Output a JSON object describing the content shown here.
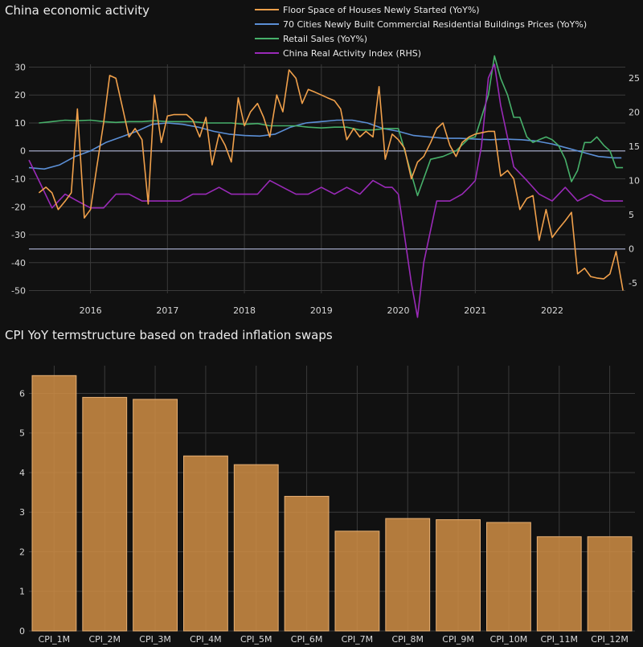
{
  "chart_data": [
    {
      "type": "line",
      "title": "China economic activity",
      "xlabel": "",
      "ylabel": "",
      "x_ticks": [
        "2016",
        "2017",
        "2018",
        "2019",
        "2020",
        "2021",
        "2022"
      ],
      "y_ticks": [
        -50,
        -40,
        -30,
        -20,
        -10,
        0,
        10,
        20,
        30
      ],
      "y2_ticks": [
        -5,
        0,
        5,
        10,
        15,
        20,
        25
      ],
      "ylim": [
        -51,
        31
      ],
      "y2lim": [
        -6.5,
        27
      ],
      "xlim": [
        2015.2,
        2022.95
      ],
      "grid": true,
      "legend_position": "top-right",
      "series": [
        {
          "name": "Floor Space of Houses Newly Started (YoY%)",
          "axis": "left",
          "color": "#f0a04b",
          "x": [
            2015.33,
            2015.42,
            2015.5,
            2015.58,
            2015.67,
            2015.75,
            2015.83,
            2015.92,
            2016.0,
            2016.08,
            2016.17,
            2016.25,
            2016.33,
            2016.42,
            2016.5,
            2016.58,
            2016.67,
            2016.75,
            2016.83,
            2016.92,
            2017.0,
            2017.08,
            2017.17,
            2017.25,
            2017.33,
            2017.42,
            2017.5,
            2017.58,
            2017.67,
            2017.75,
            2017.83,
            2017.92,
            2018.0,
            2018.08,
            2018.17,
            2018.25,
            2018.33,
            2018.42,
            2018.5,
            2018.58,
            2018.67,
            2018.75,
            2018.83,
            2018.92,
            2019.0,
            2019.08,
            2019.17,
            2019.25,
            2019.33,
            2019.42,
            2019.5,
            2019.58,
            2019.67,
            2019.75,
            2019.83,
            2019.92,
            2020.0,
            2020.08,
            2020.17,
            2020.25,
            2020.33,
            2020.42,
            2020.5,
            2020.58,
            2020.67,
            2020.75,
            2020.83,
            2020.92,
            2021.0,
            2021.08,
            2021.17,
            2021.25,
            2021.33,
            2021.42,
            2021.5,
            2021.58,
            2021.67,
            2021.75,
            2021.83,
            2021.92,
            2022.0,
            2022.08,
            2022.17,
            2022.25,
            2022.33,
            2022.42,
            2022.5,
            2022.58,
            2022.67,
            2022.75,
            2022.83,
            2022.92
          ],
          "values": [
            -15,
            -13,
            -15,
            -21,
            -18,
            -15,
            15,
            -24,
            -21,
            -6,
            10,
            27,
            26,
            15,
            5,
            8,
            4,
            -19,
            20,
            3,
            12.5,
            13,
            13,
            13,
            11,
            5,
            12,
            -5,
            6,
            2,
            -4,
            19,
            9,
            14,
            17,
            12,
            5,
            20,
            14,
            29,
            26,
            17,
            22,
            21,
            20,
            19,
            18,
            15,
            4,
            8,
            5,
            7,
            5,
            23,
            -3,
            6,
            4,
            1,
            -10,
            -4,
            -2,
            3,
            8,
            10,
            2,
            -2,
            3,
            5,
            6,
            6.5,
            7,
            7,
            -9,
            -7,
            -10,
            -21,
            -17,
            -16,
            -32,
            -21,
            -31,
            -28,
            -25,
            -22,
            -44,
            -42,
            -45,
            -45.5,
            -45.8,
            -44,
            -36,
            -50
          ]
        },
        {
          "name": "70 Cities Newly Built Commercial Residential Buildings Prices (YoY%)",
          "axis": "left",
          "color": "#5b8fd6",
          "x": [
            2015.2,
            2015.4,
            2015.6,
            2015.8,
            2016.0,
            2016.2,
            2016.4,
            2016.6,
            2016.8,
            2017.0,
            2017.2,
            2017.4,
            2017.6,
            2017.8,
            2018.0,
            2018.2,
            2018.4,
            2018.6,
            2018.8,
            2019.0,
            2019.2,
            2019.4,
            2019.6,
            2019.8,
            2020.0,
            2020.2,
            2020.4,
            2020.6,
            2020.8,
            2021.0,
            2021.2,
            2021.4,
            2021.6,
            2021.8,
            2022.0,
            2022.2,
            2022.4,
            2022.6,
            2022.8,
            2022.9
          ],
          "values": [
            -6,
            -6.5,
            -5,
            -2,
            0,
            3,
            5,
            7,
            9.5,
            10,
            9.5,
            8.5,
            7,
            6,
            5.5,
            5.3,
            6,
            8.5,
            10,
            10.5,
            11,
            11,
            10,
            8,
            7,
            5.5,
            5,
            4.5,
            4.5,
            4.2,
            4,
            4.2,
            4,
            3.5,
            2.5,
            1,
            -0.5,
            -2,
            -2.5,
            -2.5
          ]
        },
        {
          "name": "Retail Sales (YoY%)",
          "axis": "left",
          "color": "#47b06a",
          "x": [
            2015.33,
            2015.5,
            2015.67,
            2015.83,
            2016.0,
            2016.17,
            2016.33,
            2016.5,
            2016.67,
            2016.83,
            2017.0,
            2017.17,
            2017.33,
            2017.5,
            2017.67,
            2017.83,
            2018.0,
            2018.17,
            2018.33,
            2018.5,
            2018.67,
            2018.83,
            2019.0,
            2019.17,
            2019.33,
            2019.5,
            2019.67,
            2019.83,
            2020.0,
            2020.25,
            2020.42,
            2020.58,
            2020.75,
            2020.92,
            2021.0,
            2021.08,
            2021.17,
            2021.25,
            2021.33,
            2021.42,
            2021.5,
            2021.58,
            2021.67,
            2021.75,
            2021.83,
            2021.92,
            2022.0,
            2022.08,
            2022.17,
            2022.25,
            2022.33,
            2022.42,
            2022.5,
            2022.58,
            2022.67,
            2022.75,
            2022.83,
            2022.92
          ],
          "values": [
            10,
            10.5,
            11,
            10.8,
            11,
            10.5,
            10.2,
            10.5,
            10.5,
            10.8,
            10.5,
            10.5,
            10.5,
            10,
            10,
            10,
            9.5,
            9.8,
            9,
            9,
            9,
            8.5,
            8.2,
            8.5,
            8.5,
            7.5,
            7.5,
            8,
            8,
            -16,
            -3,
            -2,
            0,
            4.5,
            5,
            12,
            20,
            34,
            26,
            20,
            12,
            12,
            5,
            3,
            4,
            5,
            4,
            2,
            -3,
            -11,
            -7,
            3,
            3,
            5,
            2,
            0,
            -6,
            -6
          ]
        },
        {
          "name": "China Real Activity Index (RHS)",
          "axis": "right",
          "color": "#9a2ab8",
          "x": [
            2015.2,
            2015.33,
            2015.5,
            2015.67,
            2015.83,
            2016.0,
            2016.17,
            2016.33,
            2016.5,
            2016.67,
            2016.83,
            2017.0,
            2017.17,
            2017.33,
            2017.5,
            2017.67,
            2017.83,
            2018.0,
            2018.17,
            2018.33,
            2018.5,
            2018.67,
            2018.83,
            2019.0,
            2019.17,
            2019.33,
            2019.5,
            2019.67,
            2019.83,
            2019.92,
            2020.0,
            2020.08,
            2020.17,
            2020.25,
            2020.33,
            2020.5,
            2020.67,
            2020.83,
            2020.92,
            2021.0,
            2021.08,
            2021.17,
            2021.25,
            2021.33,
            2021.5,
            2021.67,
            2021.83,
            2022.0,
            2022.17,
            2022.33,
            2022.5,
            2022.67,
            2022.83,
            2022.92
          ],
          "values": [
            13,
            10,
            6,
            8,
            7,
            6,
            6,
            8,
            8,
            7,
            7,
            7,
            7,
            8,
            8,
            9,
            8,
            8,
            8,
            10,
            9,
            8,
            8,
            9,
            8,
            9,
            8,
            10,
            9,
            9,
            8,
            2,
            -5,
            -10,
            -2,
            7,
            7,
            8,
            9,
            10,
            15,
            25,
            27,
            21,
            12,
            10,
            8,
            7,
            9,
            7,
            8,
            7,
            7,
            7
          ]
        }
      ]
    },
    {
      "type": "bar",
      "title": "CPI YoY termstructure based on traded inflation swaps",
      "xlabel": "",
      "ylabel": "",
      "categories": [
        "CPI_1M",
        "CPI_2M",
        "CPI_3M",
        "CPI_4M",
        "CPI_5M",
        "CPI_6M",
        "CPI_7M",
        "CPI_8M",
        "CPI_9M",
        "CPI_10M",
        "CPI_11M",
        "CPI_12M"
      ],
      "values": [
        6.45,
        5.9,
        5.85,
        4.42,
        4.2,
        3.4,
        2.52,
        2.84,
        2.81,
        2.74,
        2.38,
        2.38
      ],
      "y_ticks": [
        0,
        1,
        2,
        3,
        4,
        5,
        6
      ],
      "ylim": [
        0,
        6.7
      ],
      "grid": true,
      "color": "#d08e45"
    }
  ]
}
